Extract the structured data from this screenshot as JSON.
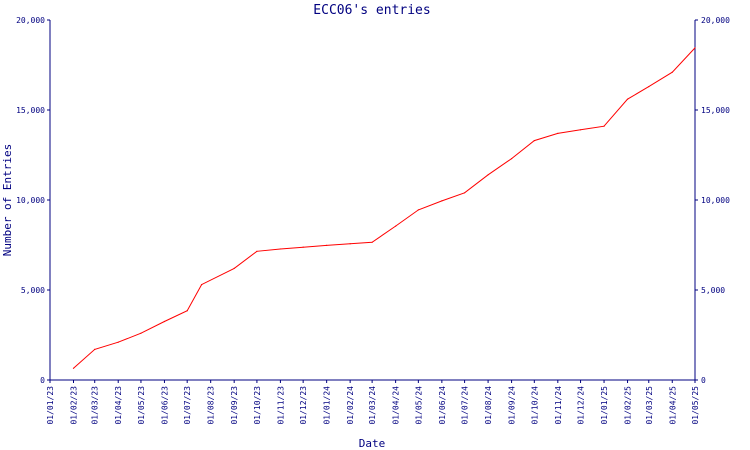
{
  "chart_data": {
    "type": "line",
    "title": "ECC06's entries",
    "xlabel": "Date",
    "ylabel": "Number of Entries",
    "ylim": [
      0,
      20000
    ],
    "yticks": [
      0,
      5000,
      10000,
      15000,
      20000
    ],
    "ytick_labels": [
      "0",
      "5,000",
      "10,000",
      "15,000",
      "20,000"
    ],
    "xtick_labels": [
      "01/01/23",
      "01/02/23",
      "01/03/23",
      "01/04/23",
      "01/05/23",
      "01/06/23",
      "01/07/23",
      "01/08/23",
      "01/09/23",
      "01/10/23",
      "01/11/23",
      "01/12/23",
      "01/01/24",
      "01/02/24",
      "01/03/24",
      "01/04/24",
      "01/05/24",
      "01/06/24",
      "01/07/24",
      "01/08/24",
      "01/09/24",
      "01/10/24",
      "01/11/24",
      "01/12/24",
      "01/01/25",
      "01/02/25",
      "01/03/25",
      "01/04/25",
      "01/05/25"
    ],
    "grid": false,
    "series": [
      {
        "color": "#ff0000",
        "points": [
          {
            "x": "01/02/23",
            "y": 650
          },
          {
            "x": "01/03/23",
            "y": 1700
          },
          {
            "x": "01/04/23",
            "y": 2100
          },
          {
            "x": "01/05/23",
            "y": 2600
          },
          {
            "x": "01/06/23",
            "y": 3250
          },
          {
            "x": "01/07/23",
            "y": 3850
          },
          {
            "x": "20/07/23",
            "y": 5300
          },
          {
            "x": "01/09/23",
            "y": 6200
          },
          {
            "x": "01/10/23",
            "y": 7150
          },
          {
            "x": "01/11/23",
            "y": 7280
          },
          {
            "x": "01/12/23",
            "y": 7380
          },
          {
            "x": "01/01/24",
            "y": 7480
          },
          {
            "x": "01/02/24",
            "y": 7570
          },
          {
            "x": "01/03/24",
            "y": 7650
          },
          {
            "x": "01/04/24",
            "y": 8550
          },
          {
            "x": "01/05/24",
            "y": 9450
          },
          {
            "x": "01/06/24",
            "y": 9950
          },
          {
            "x": "01/07/24",
            "y": 10400
          },
          {
            "x": "01/08/24",
            "y": 11400
          },
          {
            "x": "01/09/24",
            "y": 12300
          },
          {
            "x": "01/10/24",
            "y": 13300
          },
          {
            "x": "01/11/24",
            "y": 13700
          },
          {
            "x": "01/12/24",
            "y": 13900
          },
          {
            "x": "01/01/25",
            "y": 14100
          },
          {
            "x": "01/02/25",
            "y": 15600
          },
          {
            "x": "01/03/25",
            "y": 16300
          },
          {
            "x": "01/04/25",
            "y": 17100
          },
          {
            "x": "01/05/25",
            "y": 18450
          }
        ]
      }
    ]
  }
}
